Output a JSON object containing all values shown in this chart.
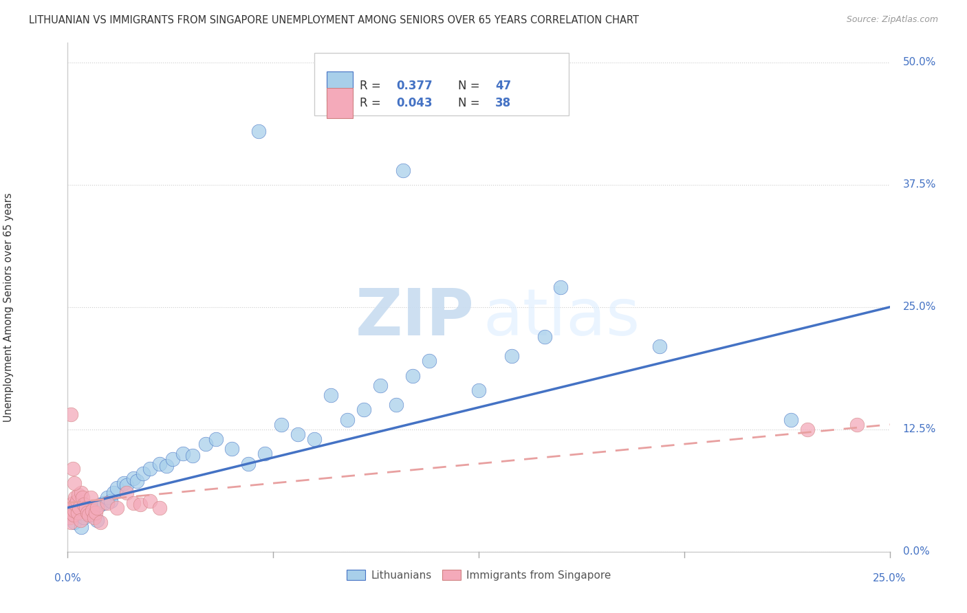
{
  "title": "LITHUANIAN VS IMMIGRANTS FROM SINGAPORE UNEMPLOYMENT AMONG SENIORS OVER 65 YEARS CORRELATION CHART",
  "source": "Source: ZipAtlas.com",
  "ylabel": "Unemployment Among Seniors over 65 years",
  "ytick_labels": [
    "0.0%",
    "12.5%",
    "25.0%",
    "37.5%",
    "50.0%"
  ],
  "ytick_values": [
    0.0,
    12.5,
    25.0,
    37.5,
    50.0
  ],
  "xlim": [
    0.0,
    25.0
  ],
  "ylim": [
    0.0,
    52.0
  ],
  "color_blue": "#A8CFEA",
  "color_pink": "#F4AABA",
  "color_blue_line": "#4472C4",
  "color_pink_line": "#E8A0A0",
  "watermark_zip": "ZIP",
  "watermark_atlas": "atlas",
  "blue_scatter_x": [
    0.2,
    0.4,
    0.5,
    0.6,
    0.7,
    0.8,
    0.9,
    1.0,
    1.1,
    1.2,
    1.3,
    1.4,
    1.5,
    1.7,
    1.8,
    2.0,
    2.1,
    2.3,
    2.5,
    2.8,
    3.0,
    3.2,
    3.5,
    3.8,
    4.2,
    4.5,
    5.0,
    5.5,
    6.0,
    6.5,
    7.0,
    7.5,
    8.0,
    8.5,
    9.0,
    9.5,
    10.0,
    10.5,
    11.0,
    12.5,
    13.5,
    14.5,
    18.0,
    22.0,
    5.8,
    10.2,
    15.0
  ],
  "blue_scatter_y": [
    3.0,
    2.5,
    3.5,
    4.0,
    3.8,
    4.5,
    3.2,
    4.8,
    5.0,
    5.5,
    5.2,
    6.0,
    6.5,
    7.0,
    6.8,
    7.5,
    7.2,
    8.0,
    8.5,
    9.0,
    8.8,
    9.5,
    10.0,
    9.8,
    11.0,
    11.5,
    10.5,
    9.0,
    10.0,
    13.0,
    12.0,
    11.5,
    16.0,
    13.5,
    14.5,
    17.0,
    15.0,
    18.0,
    19.5,
    16.5,
    20.0,
    22.0,
    21.0,
    13.5,
    43.0,
    39.0,
    27.0
  ],
  "pink_scatter_x": [
    0.05,
    0.08,
    0.1,
    0.12,
    0.15,
    0.18,
    0.2,
    0.22,
    0.25,
    0.28,
    0.3,
    0.32,
    0.35,
    0.38,
    0.4,
    0.45,
    0.5,
    0.55,
    0.6,
    0.65,
    0.7,
    0.75,
    0.8,
    0.85,
    0.9,
    1.0,
    1.2,
    1.5,
    1.8,
    2.0,
    2.2,
    2.5,
    2.8,
    0.1,
    0.15,
    0.2,
    22.5,
    24.0
  ],
  "pink_scatter_y": [
    3.5,
    4.0,
    3.0,
    4.5,
    5.0,
    3.8,
    4.2,
    5.5,
    4.8,
    5.2,
    4.0,
    5.8,
    4.5,
    3.2,
    6.0,
    5.5,
    4.8,
    4.5,
    4.0,
    3.8,
    5.5,
    4.2,
    3.5,
    4.0,
    4.5,
    3.0,
    5.0,
    4.5,
    6.0,
    5.0,
    4.8,
    5.2,
    4.5,
    14.0,
    8.5,
    7.0,
    12.5,
    13.0
  ],
  "blue_line_x0": 0.0,
  "blue_line_y0": 4.5,
  "blue_line_x1": 25.0,
  "blue_line_y1": 25.0,
  "pink_line_x0": 0.0,
  "pink_line_y0": 5.0,
  "pink_line_x1": 25.0,
  "pink_line_y1": 13.0
}
